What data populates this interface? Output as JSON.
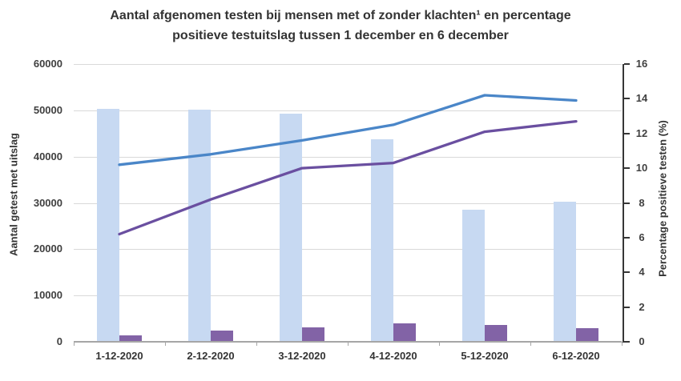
{
  "title": {
    "line1": "Aantal afgenomen testen bij mensen met of zonder klachten¹ en percentage",
    "line2": "positieve testuitslag tussen 1 december en 6 december"
  },
  "chart_data": {
    "type": "bar",
    "subtype": "combo bar+line with dual y-axes",
    "categories": [
      "1-12-2020",
      "2-12-2020",
      "3-12-2020",
      "4-12-2020",
      "5-12-2020",
      "6-12-2020"
    ],
    "series": [
      {
        "id": "bars_light_blue",
        "type": "bar",
        "axis": "left",
        "color": "#c7d9f2",
        "values": [
          50300,
          50200,
          49300,
          43700,
          28600,
          30200
        ]
      },
      {
        "id": "bars_purple",
        "type": "bar",
        "axis": "left",
        "color": "#8263a6",
        "values": [
          1400,
          2500,
          3100,
          4000,
          3600,
          2900
        ]
      },
      {
        "id": "line_blue",
        "type": "line",
        "axis": "right",
        "color": "#4a86c8",
        "values": [
          10.2,
          10.8,
          11.6,
          12.5,
          14.2,
          13.9
        ]
      },
      {
        "id": "line_purple",
        "type": "line",
        "axis": "right",
        "color": "#6a4fa0",
        "values": [
          6.2,
          8.2,
          10.0,
          10.3,
          12.1,
          12.7
        ]
      }
    ],
    "left_axis": {
      "title": "Aantal getest met uitslag",
      "min": 0,
      "max": 60000,
      "step": 10000,
      "tick_labels": [
        "0",
        "10000",
        "20000",
        "30000",
        "40000",
        "50000",
        "60000"
      ]
    },
    "right_axis": {
      "title": "Percentage positieve testen (%)",
      "min": 0,
      "max": 16,
      "step": 2,
      "tick_labels": [
        "0",
        "2",
        "4",
        "6",
        "8",
        "10",
        "12",
        "14",
        "16"
      ]
    },
    "grid": "horizontal gridlines at left-axis steps",
    "legend": "none"
  },
  "style_colors": {
    "gridline": "#d9d9d9",
    "bottom_axis": "#a6a6a6",
    "right_axis": "#363636",
    "text": "#333333"
  }
}
